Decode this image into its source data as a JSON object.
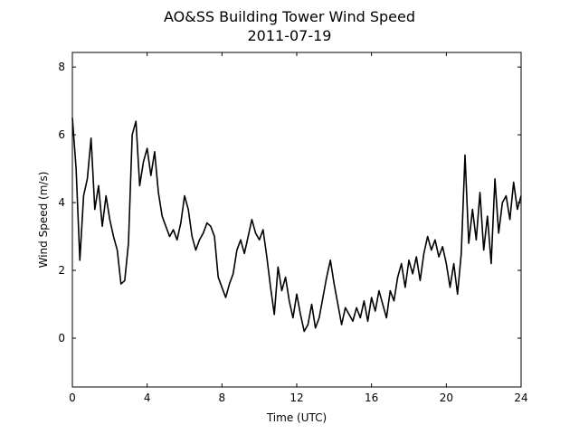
{
  "chart_data": {
    "type": "line",
    "title": "AO&SS Building Tower Wind Speed",
    "subtitle": "2011-07-19",
    "x_label": "Time (UTC)",
    "y_label": "Wind Speed (m/s)",
    "xlim": [
      0,
      24
    ],
    "xticks": [
      0,
      4,
      8,
      12,
      16,
      20,
      24
    ],
    "ylim": [
      -1.44,
      8.43
    ],
    "yticks": [
      0,
      2,
      4,
      6,
      8
    ],
    "grid": false,
    "series": [
      {
        "color": "#000000",
        "x": [
          0.0,
          0.2,
          0.4,
          0.6,
          0.8,
          1.0,
          1.2,
          1.4,
          1.6,
          1.8,
          2.0,
          2.2,
          2.4,
          2.6,
          2.8,
          3.0,
          3.2,
          3.4,
          3.6,
          3.8,
          4.0,
          4.2,
          4.4,
          4.6,
          4.8,
          5.0,
          5.2,
          5.4,
          5.6,
          5.8,
          6.0,
          6.2,
          6.4,
          6.6,
          6.8,
          7.0,
          7.2,
          7.4,
          7.6,
          7.8,
          8.0,
          8.2,
          8.4,
          8.6,
          8.8,
          9.0,
          9.2,
          9.4,
          9.6,
          9.8,
          10.0,
          10.2,
          10.4,
          10.6,
          10.8,
          11.0,
          11.2,
          11.4,
          11.6,
          11.8,
          12.0,
          12.2,
          12.4,
          12.6,
          12.8,
          13.0,
          13.2,
          13.4,
          13.6,
          13.8,
          14.0,
          14.2,
          14.4,
          14.6,
          14.8,
          15.0,
          15.2,
          15.4,
          15.6,
          15.8,
          16.0,
          16.2,
          16.4,
          16.6,
          16.8,
          17.0,
          17.2,
          17.4,
          17.6,
          17.8,
          18.0,
          18.2,
          18.4,
          18.6,
          18.8,
          19.0,
          19.2,
          19.4,
          19.6,
          19.8,
          20.0,
          20.2,
          20.4,
          20.6,
          20.8,
          21.0,
          21.2,
          21.4,
          21.6,
          21.8,
          22.0,
          22.2,
          22.4,
          22.6,
          22.8,
          23.0,
          23.2,
          23.4,
          23.6,
          23.8,
          24.0
        ],
        "values": [
          6.5,
          5.0,
          2.3,
          4.2,
          4.7,
          5.9,
          3.8,
          4.5,
          3.3,
          4.2,
          3.5,
          3.0,
          2.6,
          1.6,
          1.7,
          2.8,
          6.0,
          6.4,
          4.5,
          5.2,
          5.6,
          4.8,
          5.5,
          4.3,
          3.6,
          3.3,
          3.0,
          3.2,
          2.9,
          3.4,
          4.2,
          3.8,
          3.0,
          2.6,
          2.9,
          3.1,
          3.4,
          3.3,
          3.0,
          1.8,
          1.5,
          1.2,
          1.6,
          1.9,
          2.6,
          2.9,
          2.5,
          3.0,
          3.5,
          3.1,
          2.9,
          3.2,
          2.4,
          1.5,
          0.7,
          2.1,
          1.4,
          1.8,
          1.1,
          0.6,
          1.3,
          0.7,
          0.2,
          0.4,
          1.0,
          0.3,
          0.6,
          1.2,
          1.8,
          2.3,
          1.6,
          1.0,
          0.4,
          0.9,
          0.7,
          0.5,
          0.9,
          0.6,
          1.1,
          0.5,
          1.2,
          0.8,
          1.4,
          1.0,
          0.6,
          1.4,
          1.1,
          1.8,
          2.2,
          1.5,
          2.3,
          1.9,
          2.4,
          1.7,
          2.5,
          3.0,
          2.6,
          2.9,
          2.4,
          2.7,
          2.2,
          1.5,
          2.2,
          1.3,
          2.5,
          5.4,
          2.8,
          3.8,
          2.9,
          4.3,
          2.6,
          3.6,
          2.2,
          4.7,
          3.1,
          4.0,
          4.2,
          3.5,
          4.6,
          3.8,
          4.2
        ]
      }
    ]
  }
}
